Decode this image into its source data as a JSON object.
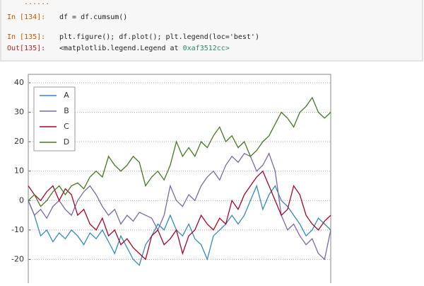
{
  "cells": [
    {
      "prompt": "In [134]:",
      "code": "df = df.cumsum()"
    },
    {
      "prompt": "In [135]:",
      "code": "plt.figure(); df.plot(); plt.legend(loc='best')"
    }
  ],
  "ellipsis": "......",
  "output": {
    "prompt": "Out[135]:",
    "text": "<matplotlib.legend.Legend at ",
    "address": "0xaf3512cc>"
  },
  "chart_data": {
    "type": "line",
    "ylim": [
      -30,
      40
    ],
    "yticks": [
      -20,
      -10,
      0,
      10,
      20,
      30,
      40
    ],
    "grid": true,
    "legend": "upper left",
    "series": [
      {
        "name": "A",
        "color": "#348abd",
        "values": [
          0,
          -5,
          -12,
          -10,
          -14,
          -11,
          -13,
          -10,
          -12,
          -15,
          -11,
          -13,
          -10,
          -14,
          -18,
          -12,
          -16,
          -20,
          -22,
          -15,
          -12,
          -8,
          -10,
          -5,
          -10,
          -12,
          -8,
          -13,
          -15,
          -20,
          -12,
          -10,
          -8,
          -5,
          -8,
          -5,
          0,
          5,
          -3,
          2,
          5,
          0,
          -2,
          -5,
          -8,
          -12,
          -10,
          -6,
          -8,
          -10
        ]
      },
      {
        "name": "B",
        "color": "#7a68a6",
        "values": [
          0,
          -5,
          -3,
          -6,
          -2,
          0,
          -3,
          -5,
          0,
          3,
          5,
          2,
          -2,
          -5,
          -3,
          -8,
          -5,
          -7,
          -4,
          -5,
          -6,
          -10,
          -5,
          5,
          0,
          -2,
          2,
          0,
          5,
          8,
          10,
          7,
          12,
          15,
          13,
          16,
          15,
          10,
          12,
          16,
          10,
          -5,
          -10,
          -8,
          -12,
          -15,
          -13,
          -18,
          -20,
          -10
        ]
      },
      {
        "name": "C",
        "color": "#a60628",
        "values": [
          5,
          2,
          0,
          3,
          5,
          0,
          4,
          2,
          -5,
          -3,
          -8,
          -10,
          -6,
          -12,
          -10,
          -15,
          -13,
          -16,
          -18,
          -20,
          -12,
          -10,
          -15,
          -13,
          -10,
          -18,
          -12,
          -10,
          -5,
          -8,
          -10,
          -6,
          -8,
          0,
          -3,
          2,
          5,
          8,
          10,
          5,
          0,
          -5,
          -3,
          5,
          2,
          -5,
          -8,
          -10,
          -7,
          -5
        ]
      },
      {
        "name": "D",
        "color": "#467821",
        "values": [
          0,
          2,
          -2,
          0,
          3,
          5,
          2,
          5,
          6,
          4,
          8,
          10,
          8,
          15,
          12,
          10,
          12,
          15,
          13,
          5,
          8,
          10,
          7,
          12,
          20,
          15,
          18,
          15,
          20,
          18,
          22,
          25,
          20,
          22,
          18,
          20,
          15,
          17,
          20,
          22,
          26,
          30,
          28,
          25,
          30,
          32,
          35,
          30,
          28,
          30
        ]
      }
    ]
  }
}
